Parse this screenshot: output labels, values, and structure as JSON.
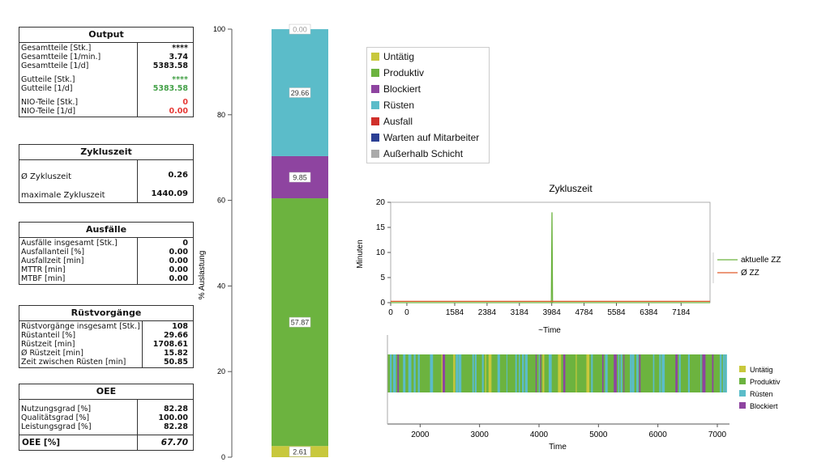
{
  "panels": {
    "output": {
      "title": "Output",
      "rows": [
        {
          "label": "Gesamtteile [Stk.]",
          "value": "****"
        },
        {
          "label": "Gesamtteile [1/min.]",
          "value": "3.74"
        },
        {
          "label": "Gesamtteile [1/d]",
          "value": "5383.58"
        },
        {
          "label": "Gutteile [Stk.]",
          "value": "****"
        },
        {
          "label": "Gutteile [1/d]",
          "value": "5383.58"
        },
        {
          "label": "NIO-Teile [Stk.]",
          "value": "0"
        },
        {
          "label": "NIO-Teile [1/d]",
          "value": "0.00"
        }
      ]
    },
    "zykluszeit": {
      "title": "Zykluszeit",
      "rows": [
        {
          "label": "Ø Zykluszeit",
          "value": "0.26"
        },
        {
          "label": "maximale Zykluszeit",
          "value": "1440.09"
        }
      ]
    },
    "ausfaelle": {
      "title": "Ausfälle",
      "rows": [
        {
          "label": "Ausfälle insgesamt [Stk.]",
          "value": "0"
        },
        {
          "label": "Ausfallanteil [%]",
          "value": "0.00"
        },
        {
          "label": "Ausfallzeit [min]",
          "value": "0.00"
        },
        {
          "label": "MTTR [min]",
          "value": "0.00"
        },
        {
          "label": "MTBF [min]",
          "value": "0.00"
        }
      ]
    },
    "ruest": {
      "title": "Rüstvorgänge",
      "rows": [
        {
          "label": "Rüstvorgänge insgesamt [Stk.]",
          "value": "108"
        },
        {
          "label": "Rüstanteil [%]",
          "value": "29.66"
        },
        {
          "label": "Rüstzeit [min]",
          "value": "1708.61"
        },
        {
          "label": "Ø Rüstzeit [min]",
          "value": "15.82"
        },
        {
          "label": "Zeit zwischen Rüsten [min]",
          "value": "50.85"
        }
      ]
    },
    "oee": {
      "title": "OEE",
      "rows": [
        {
          "label": "Nutzungsgrad [%]",
          "value": "82.28"
        },
        {
          "label": "Qualitätsgrad [%]",
          "value": "100.00"
        },
        {
          "label": "Leistungsgrad [%]",
          "value": "82.28"
        }
      ],
      "total_label": "OEE [%]",
      "total_value": "67.70"
    }
  },
  "colors": {
    "untaetig": "#c8c83c",
    "produktiv": "#6cb33f",
    "blockiert": "#8e44a0",
    "ruesten": "#5bbcc9",
    "ausfall": "#d0302b",
    "warten": "#2b3f94",
    "ausserhalb": "#aaaaaa"
  },
  "chart_data": [
    {
      "type": "bar",
      "ylabel": "% Auslastung",
      "ylim": [
        0,
        100
      ],
      "yticks": [
        "0",
        "20",
        "40",
        "60",
        "80",
        "100"
      ],
      "segments": [
        {
          "name": "Untätig",
          "value": 2.61,
          "label": "2.61",
          "color": "#c8c83c"
        },
        {
          "name": "Produktiv",
          "value": 57.87,
          "label": "57.87",
          "color": "#6cb33f"
        },
        {
          "name": "Blockiert",
          "value": 9.85,
          "label": "9.85",
          "color": "#8e44a0"
        },
        {
          "name": "Rüsten",
          "value": 29.66,
          "label": "29.66",
          "color": "#5bbcc9"
        },
        {
          "name": "Außerhalb Schicht",
          "value": 0.0,
          "label": "0.00",
          "color": "#aaaaaa"
        }
      ],
      "legend": [
        {
          "name": "Untätig",
          "color": "#c8c83c"
        },
        {
          "name": "Produktiv",
          "color": "#6cb33f"
        },
        {
          "name": "Blockiert",
          "color": "#8e44a0"
        },
        {
          "name": "Rüsten",
          "color": "#5bbcc9"
        },
        {
          "name": "Ausfall",
          "color": "#d0302b"
        },
        {
          "name": "Warten auf Mitarbeiter",
          "color": "#2b3f94"
        },
        {
          "name": "Außerhalb Schicht",
          "color": "#aaaaaa"
        }
      ]
    },
    {
      "type": "line",
      "title": "Zykluszeit",
      "xlabel": "~Time",
      "ylabel": "Minuten",
      "xlim": [
        0,
        7900
      ],
      "ylim": [
        0,
        20
      ],
      "xticks": [
        "0",
        "0",
        "1584",
        "2384",
        "3184",
        "3984",
        "4784",
        "5584",
        "6384",
        "7184"
      ],
      "yticks": [
        "0",
        "5",
        "10",
        "15",
        "20"
      ],
      "series": [
        {
          "name": "aktuelle ZZ",
          "color": "#6cb33f",
          "points": [
            [
              0,
              0
            ],
            [
              3975,
              0
            ],
            [
              3990,
              18
            ],
            [
              4005,
              0
            ],
            [
              7900,
              0
            ]
          ]
        },
        {
          "name": "Ø ZZ",
          "color": "#e05a2a",
          "points": [
            [
              0,
              0.26
            ],
            [
              7900,
              0.26
            ]
          ]
        }
      ]
    },
    {
      "type": "heatmap",
      "xlabel": "Time",
      "xlim": [
        1450,
        7150
      ],
      "xticks": [
        "2000",
        "3000",
        "4000",
        "5000",
        "6000",
        "7000"
      ],
      "legend": [
        {
          "name": "Untätig",
          "color": "#c8c83c"
        },
        {
          "name": "Produktiv",
          "color": "#6cb33f"
        },
        {
          "name": "Rüsten",
          "color": "#5bbcc9"
        },
        {
          "name": "Blockiert",
          "color": "#8e44a0"
        }
      ],
      "stripe_counts": {
        "Produktiv": 0.58,
        "Rüsten": 0.28,
        "Blockiert": 0.11,
        "Untätig": 0.03
      }
    }
  ]
}
